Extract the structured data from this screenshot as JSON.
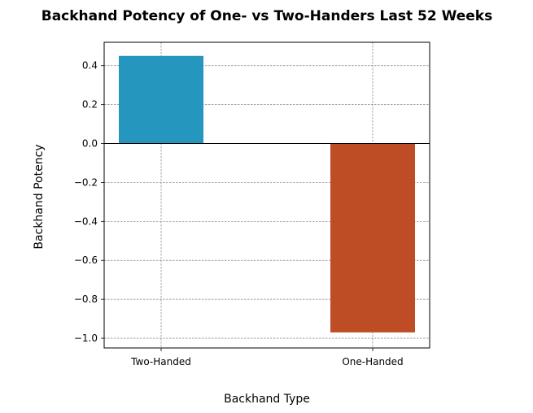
{
  "chart_data": {
    "type": "bar",
    "title": "Backhand Potency of One- vs Two-Handers Last 52 Weeks",
    "xlabel": "Backhand Type",
    "ylabel": "Backhand Potency",
    "categories": [
      "Two-Handed",
      "One-Handed"
    ],
    "values": [
      0.45,
      -0.97
    ],
    "colors": [
      "#2596be",
      "#be4d25"
    ],
    "ylim": [
      -1.05,
      0.52
    ],
    "yticks": [
      0.4,
      0.2,
      0.0,
      -0.2,
      -0.4,
      -0.6,
      -0.8,
      -1.0
    ],
    "ytick_labels": [
      "0.4",
      "0.2",
      "0.0",
      "−0.2",
      "−0.4",
      "−0.6",
      "−0.8",
      "−1.0"
    ],
    "grid": true,
    "zero_line": true
  }
}
